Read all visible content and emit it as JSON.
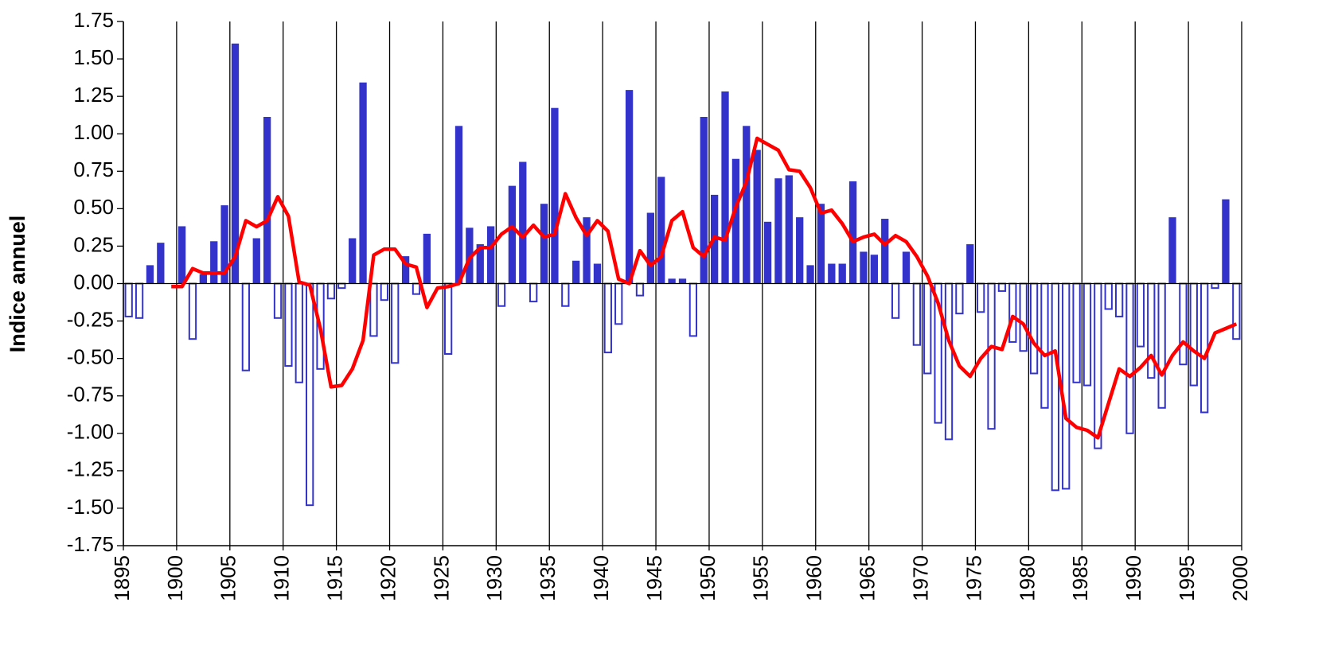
{
  "chart_data": {
    "type": "combo",
    "y_label": "Indice annuel",
    "x": [
      1896,
      1897,
      1898,
      1899,
      1900,
      1901,
      1902,
      1903,
      1904,
      1905,
      1906,
      1907,
      1908,
      1909,
      1910,
      1911,
      1912,
      1913,
      1914,
      1915,
      1916,
      1917,
      1918,
      1919,
      1920,
      1921,
      1922,
      1923,
      1924,
      1925,
      1926,
      1927,
      1928,
      1929,
      1930,
      1931,
      1932,
      1933,
      1934,
      1935,
      1936,
      1937,
      1938,
      1939,
      1940,
      1941,
      1942,
      1943,
      1944,
      1945,
      1946,
      1947,
      1948,
      1949,
      1950,
      1951,
      1952,
      1953,
      1954,
      1955,
      1956,
      1957,
      1958,
      1959,
      1960,
      1961,
      1962,
      1963,
      1964,
      1965,
      1966,
      1967,
      1968,
      1969,
      1970,
      1971,
      1972,
      1973,
      1974,
      1975,
      1976,
      1977,
      1978,
      1979,
      1980,
      1981,
      1982,
      1983,
      1984,
      1985,
      1986,
      1987,
      1988,
      1989,
      1990,
      1991,
      1992,
      1993,
      1994,
      1995,
      1996,
      1997,
      1998,
      1999,
      2000
    ],
    "series": [
      {
        "type": "bar",
        "color": "#3333cc",
        "negative_style": "hollow",
        "values": [
          -0.22,
          -0.23,
          0.12,
          0.27,
          0,
          0.38,
          -0.37,
          0.06,
          0.28,
          0.52,
          1.6,
          -0.58,
          0.3,
          1.11,
          -0.23,
          -0.55,
          -0.66,
          -1.48,
          -0.57,
          -0.1,
          -0.03,
          0.3,
          1.34,
          -0.35,
          -0.11,
          -0.53,
          0.18,
          -0.07,
          0.33,
          0,
          -0.47,
          1.05,
          0.37,
          0.26,
          0.38,
          -0.15,
          0.65,
          0.81,
          -0.12,
          0.53,
          1.17,
          -0.15,
          0.15,
          0.44,
          0.13,
          -0.46,
          -0.27,
          1.29,
          -0.08,
          0.47,
          0.71,
          0.03,
          0.03,
          -0.35,
          1.11,
          0.59,
          1.28,
          0.83,
          1.05,
          0.89,
          0.41,
          0.7,
          0.72,
          0.44,
          0.12,
          0.53,
          0.13,
          0.13,
          0.68,
          0.21,
          0.19,
          0.43,
          -0.23,
          0.21,
          -0.41,
          -0.6,
          -0.93,
          -1.04,
          -0.2,
          0.26,
          -0.19,
          -0.97,
          -0.05,
          -0.39,
          -0.45,
          -0.6,
          -0.83,
          -1.38,
          -1.37,
          -0.66,
          -0.68,
          -1.1,
          -0.17,
          -0.22,
          -1.0,
          -0.42,
          -0.63,
          -0.83,
          0.44,
          -0.54,
          -0.68,
          -0.86,
          -0.03,
          0.56,
          -0.37
        ]
      },
      {
        "type": "line",
        "color": "#ff0000",
        "values": [
          null,
          null,
          null,
          null,
          -0.02,
          -0.02,
          0.1,
          0.07,
          0.07,
          0.07,
          0.18,
          0.42,
          0.38,
          0.42,
          0.58,
          0.45,
          0.01,
          -0.01,
          -0.3,
          -0.69,
          -0.68,
          -0.57,
          -0.38,
          0.19,
          0.23,
          0.23,
          0.13,
          0.11,
          -0.16,
          -0.03,
          -0.02,
          0.0,
          0.17,
          0.24,
          0.24,
          0.33,
          0.38,
          0.31,
          0.39,
          0.31,
          0.33,
          0.6,
          0.44,
          0.32,
          0.42,
          0.35,
          0.03,
          0.0,
          0.22,
          0.12,
          0.18,
          0.42,
          0.48,
          0.24,
          0.18,
          0.31,
          0.29,
          0.51,
          0.68,
          0.97,
          0.93,
          0.89,
          0.76,
          0.75,
          0.64,
          0.47,
          0.49,
          0.4,
          0.28,
          0.31,
          0.33,
          0.26,
          0.32,
          0.28,
          0.18,
          0.05,
          -0.13,
          -0.38,
          -0.55,
          -0.62,
          -0.5,
          -0.42,
          -0.44,
          -0.22,
          -0.27,
          -0.4,
          -0.48,
          -0.45,
          -0.9,
          -0.96,
          -0.98,
          -1.03,
          -0.8,
          -0.57,
          -0.62,
          -0.56,
          -0.48,
          -0.61,
          -0.48,
          -0.39,
          -0.45,
          -0.5,
          -0.33,
          -0.3,
          -0.27
        ]
      }
    ],
    "xlim": [
      1895,
      2000
    ],
    "xticks": [
      1895,
      1900,
      1905,
      1910,
      1915,
      1920,
      1925,
      1930,
      1935,
      1940,
      1945,
      1950,
      1955,
      1960,
      1965,
      1970,
      1975,
      1980,
      1985,
      1990,
      1995,
      2000
    ],
    "ylim": [
      -1.75,
      1.75
    ],
    "yticks": [
      {
        "value": 1.75,
        "label": "1.75"
      },
      {
        "value": 1.5,
        "label": "1.50"
      },
      {
        "value": 1.25,
        "label": "1.25"
      },
      {
        "value": 1,
        "label": "1.00"
      },
      {
        "value": 0.75,
        "label": "0.75"
      },
      {
        "value": 0.5,
        "label": "0.50"
      },
      {
        "value": 0.25,
        "label": "0.25"
      },
      {
        "value": 0,
        "label": "0.00"
      },
      {
        "value": -0.25,
        "label": "-0.25"
      },
      {
        "value": -0.5,
        "label": "-0.50"
      },
      {
        "value": -0.75,
        "label": "-0.75"
      },
      {
        "value": -1,
        "label": "-1.00"
      },
      {
        "value": -1.25,
        "label": "-1.25"
      },
      {
        "value": -1.5,
        "label": "-1.50"
      },
      {
        "value": -1.75,
        "label": "-1.75"
      }
    ],
    "x_grid": true
  }
}
